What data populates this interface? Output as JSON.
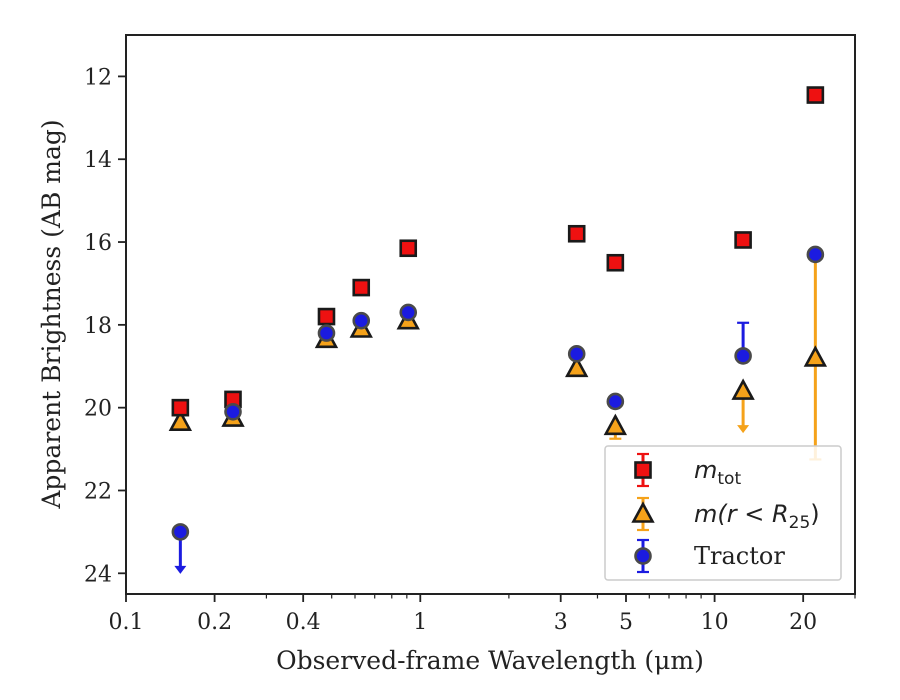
{
  "chart_data": {
    "type": "scatter",
    "title": "",
    "xlabel": "Observed-frame Wavelength (μm)",
    "ylabel": "Apparent Brightness (AB mag)",
    "xscale": "log",
    "xlim": [
      0.1,
      30
    ],
    "ylim": [
      24.5,
      11
    ],
    "y_inverted": true,
    "x_ticks": [
      {
        "value": 0.1,
        "label": "0.1"
      },
      {
        "value": 0.2,
        "label": "0.2"
      },
      {
        "value": 0.4,
        "label": "0.4"
      },
      {
        "value": 1,
        "label": "1"
      },
      {
        "value": 3,
        "label": "3"
      },
      {
        "value": 5,
        "label": "5"
      },
      {
        "value": 10,
        "label": "10"
      },
      {
        "value": 20,
        "label": "20"
      }
    ],
    "y_ticks": [
      {
        "value": 12,
        "label": "12"
      },
      {
        "value": 14,
        "label": "14"
      },
      {
        "value": 16,
        "label": "16"
      },
      {
        "value": 18,
        "label": "18"
      },
      {
        "value": 20,
        "label": "20"
      },
      {
        "value": 22,
        "label": "22"
      },
      {
        "value": 24,
        "label": "24"
      }
    ],
    "grid": false,
    "legend_position": "lower-right",
    "series": [
      {
        "name": "m_tot",
        "label_main": "m",
        "label_sub": "tot",
        "marker": "square",
        "color": "#ee1111",
        "edge_color": "#1a1a1a",
        "points": [
          {
            "x": 0.153,
            "y": 20.0
          },
          {
            "x": 0.231,
            "y": 19.8
          },
          {
            "x": 0.48,
            "y": 17.8
          },
          {
            "x": 0.63,
            "y": 17.1
          },
          {
            "x": 0.91,
            "y": 16.15
          },
          {
            "x": 3.4,
            "y": 15.8
          },
          {
            "x": 4.6,
            "y": 16.5
          },
          {
            "x": 12.5,
            "y": 15.95
          },
          {
            "x": 22.0,
            "y": 12.45
          }
        ]
      },
      {
        "name": "m(r < R25)",
        "label_main": "m(r < R",
        "label_sub": "25",
        "label_end": ")",
        "marker": "triangle",
        "color": "#f5a21a",
        "edge_color": "#1a1a1a",
        "points": [
          {
            "x": 0.153,
            "y": 20.35,
            "err_low": 0.25
          },
          {
            "x": 0.231,
            "y": 20.25
          },
          {
            "x": 0.48,
            "y": 18.35
          },
          {
            "x": 0.63,
            "y": 18.1
          },
          {
            "x": 0.91,
            "y": 17.9
          },
          {
            "x": 3.4,
            "y": 19.05
          },
          {
            "x": 4.6,
            "y": 20.45,
            "err_high": 0.3
          },
          {
            "x": 12.5,
            "y": 19.6,
            "upper_limit_arrow": true
          },
          {
            "x": 22.0,
            "y": 18.8,
            "err_low": 2.45,
            "err_high": 2.45
          }
        ]
      },
      {
        "name": "Tractor",
        "label_main": "Tractor",
        "marker": "circle",
        "color": "#1b1be0",
        "edge_color": "#4a4a4a",
        "points": [
          {
            "x": 0.153,
            "y": 23.0,
            "upper_limit_arrow": true
          },
          {
            "x": 0.231,
            "y": 20.1
          },
          {
            "x": 0.48,
            "y": 18.2
          },
          {
            "x": 0.63,
            "y": 17.9
          },
          {
            "x": 0.91,
            "y": 17.7
          },
          {
            "x": 3.4,
            "y": 18.7
          },
          {
            "x": 4.6,
            "y": 19.85
          },
          {
            "x": 12.5,
            "y": 18.75,
            "err_low": 0.8
          },
          {
            "x": 22.0,
            "y": 16.3
          }
        ]
      }
    ]
  }
}
